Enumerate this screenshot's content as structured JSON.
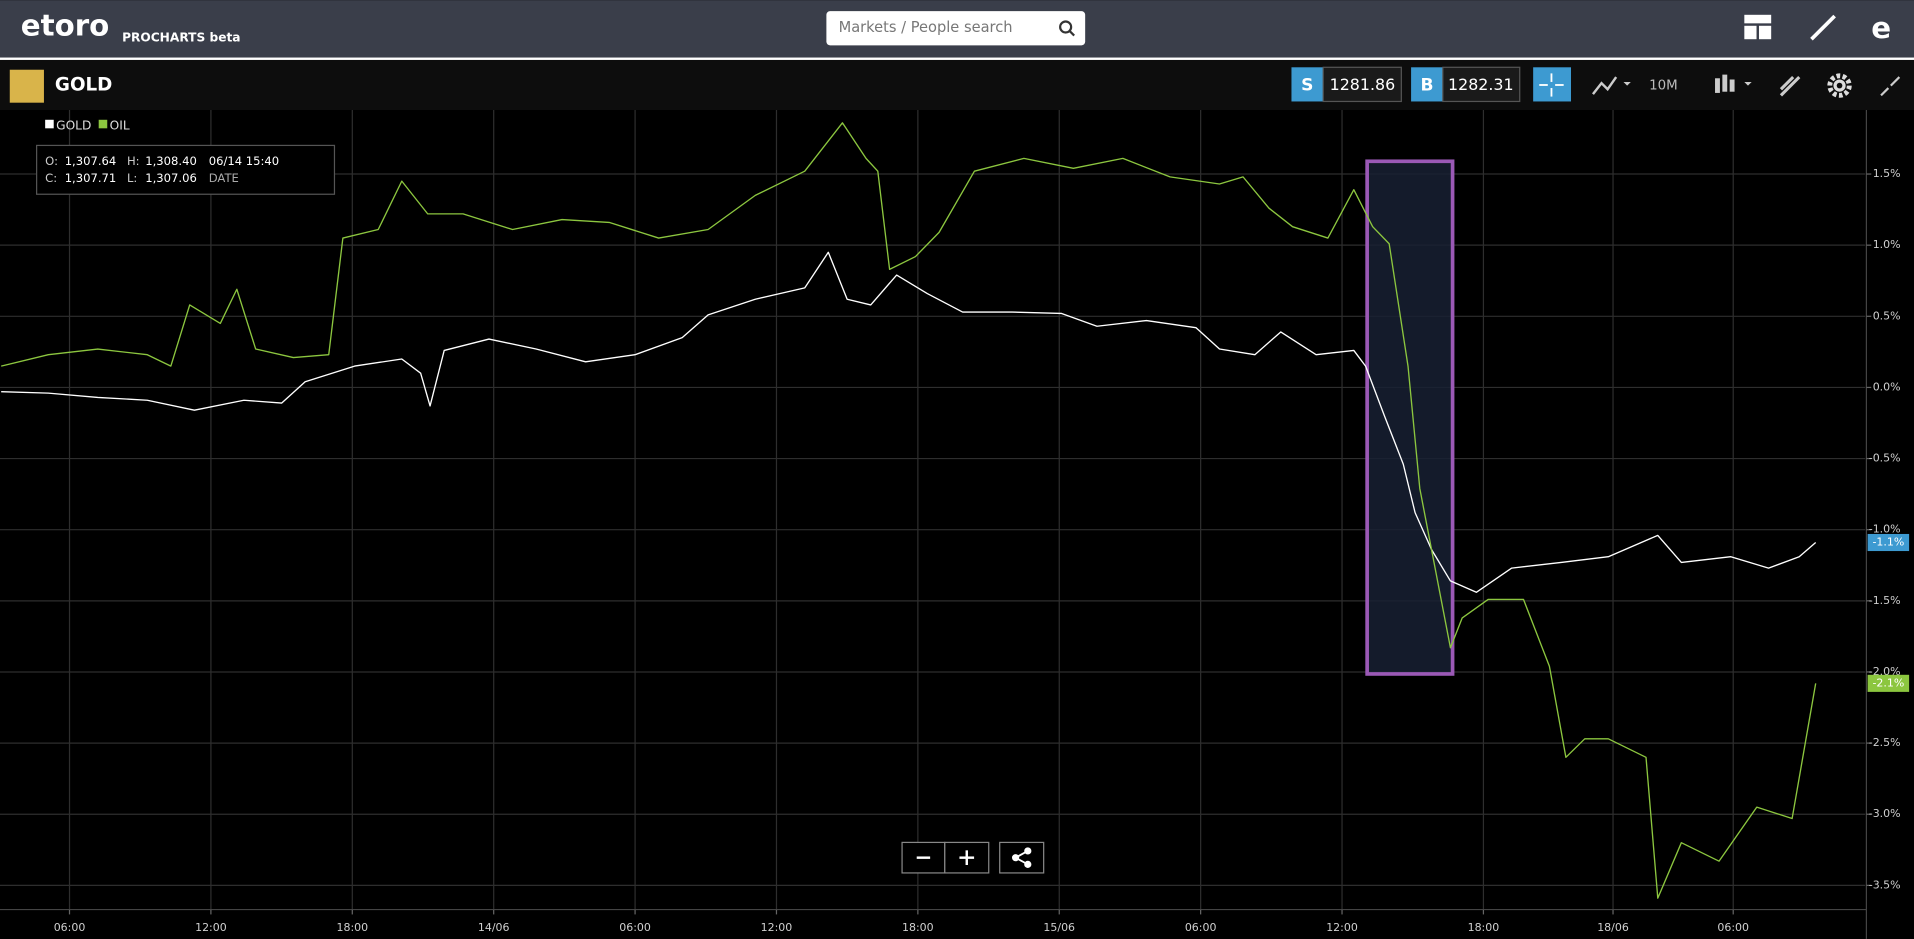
{
  "header": {
    "logo": "etoro",
    "product": "PROCHARTS beta",
    "search_placeholder": "Markets / People search"
  },
  "instrument": {
    "name": "GOLD",
    "sell_label": "S",
    "sell_price": 1281.86,
    "buy_label": "B",
    "buy_price": 1282.31,
    "timeframe": "10M"
  },
  "ohlc": {
    "o_label": "O:",
    "o": "1,307.64",
    "h_label": "H:",
    "h": "1,308.40",
    "date": "06/14 15:40",
    "c_label": "C:",
    "c": "1,307.71",
    "l_label": "L:",
    "l": "1,307.06",
    "date_label": "DATE"
  },
  "chart_data": {
    "type": "line",
    "xlim": [
      3.05,
      82.2
    ],
    "xticks": [
      {
        "value": 6,
        "label": "06:00"
      },
      {
        "value": 12,
        "label": "12:00"
      },
      {
        "value": 18,
        "label": "18:00"
      },
      {
        "value": 24,
        "label": "14/06"
      },
      {
        "value": 30,
        "label": "06:00"
      },
      {
        "value": 36,
        "label": "12:00"
      },
      {
        "value": 42,
        "label": "18:00"
      },
      {
        "value": 48,
        "label": "15/06"
      },
      {
        "value": 54,
        "label": "06:00"
      },
      {
        "value": 60,
        "label": "12:00"
      },
      {
        "value": 66,
        "label": "18:00"
      },
      {
        "value": 71.5,
        "label": "18/06"
      },
      {
        "value": 76.6,
        "label": "06:00"
      }
    ],
    "ylim": [
      -3.67,
      1.95
    ],
    "yticks": [
      {
        "value": 1.5,
        "label": "1.5%"
      },
      {
        "value": 1.0,
        "label": "1.0%"
      },
      {
        "value": 0.5,
        "label": "0.5%"
      },
      {
        "value": 0.0,
        "label": "0.0%"
      },
      {
        "value": -0.5,
        "label": "-0.5%"
      },
      {
        "value": -1.0,
        "label": "-1.0%"
      },
      {
        "value": -1.5,
        "label": "-1.5%"
      },
      {
        "value": -2.0,
        "label": "-2.0%"
      },
      {
        "value": -2.5,
        "label": "-2.5%"
      },
      {
        "value": -3.0,
        "label": "-3.0%"
      },
      {
        "value": -3.5,
        "label": "-3.5%"
      }
    ],
    "grid": true,
    "legend": "top-left",
    "series": [
      {
        "name": "GOLD",
        "color": "#ffffff",
        "label_color": "#3d9ad1",
        "last_label": "-1.1%",
        "x": [
          3.1,
          5.1,
          7.2,
          9.3,
          11.3,
          13.4,
          15.0,
          16.0,
          18.1,
          20.1,
          20.9,
          21.3,
          21.9,
          23.8,
          25.8,
          27.9,
          30.0,
          32.0,
          33.1,
          35.1,
          37.2,
          38.2,
          39.0,
          40.0,
          41.1,
          42.4,
          43.9,
          46.0,
          48.1,
          49.6,
          51.7,
          53.8,
          54.8,
          56.3,
          57.4,
          58.9,
          60.5,
          61.0,
          61.8,
          62.6,
          63.1,
          63.8,
          64.6,
          65.7,
          67.2,
          69.3,
          71.3,
          73.4,
          74.4,
          76.5,
          78.1,
          79.4,
          80.1
        ],
        "values": [
          -0.03,
          -0.04,
          -0.07,
          -0.09,
          -0.16,
          -0.09,
          -0.11,
          0.04,
          0.15,
          0.2,
          0.1,
          -0.13,
          0.26,
          0.34,
          0.27,
          0.18,
          0.23,
          0.35,
          0.51,
          0.62,
          0.7,
          0.95,
          0.62,
          0.58,
          0.79,
          0.66,
          0.53,
          0.53,
          0.52,
          0.43,
          0.47,
          0.42,
          0.27,
          0.23,
          0.39,
          0.23,
          0.26,
          0.15,
          -0.2,
          -0.54,
          -0.88,
          -1.14,
          -1.36,
          -1.44,
          -1.27,
          -1.23,
          -1.19,
          -1.04,
          -1.23,
          -1.19,
          -1.27,
          -1.19,
          -1.09
        ]
      },
      {
        "name": "OIL",
        "color": "#8cc63f",
        "label_color": "#8cc63f",
        "last_label": "-2.1%",
        "x": [
          3.1,
          5.1,
          7.2,
          9.3,
          10.3,
          11.1,
          12.4,
          13.1,
          13.9,
          15.5,
          17.0,
          17.6,
          19.1,
          20.1,
          21.2,
          22.7,
          24.8,
          26.9,
          28.9,
          31.0,
          33.1,
          35.1,
          37.2,
          38.8,
          39.8,
          40.3,
          40.8,
          41.9,
          42.9,
          44.4,
          46.5,
          48.6,
          50.7,
          52.7,
          54.8,
          55.8,
          56.9,
          57.9,
          59.4,
          60.5,
          61.3,
          62.0,
          62.8,
          63.3,
          64.1,
          64.6,
          65.1,
          66.2,
          67.7,
          68.8,
          69.5,
          70.3,
          71.3,
          72.9,
          73.4,
          74.4,
          76.0,
          77.6,
          79.1,
          80.1
        ],
        "values": [
          0.15,
          0.23,
          0.27,
          0.23,
          0.15,
          0.58,
          0.45,
          0.69,
          0.27,
          0.21,
          0.23,
          1.05,
          1.11,
          1.45,
          1.22,
          1.22,
          1.11,
          1.18,
          1.16,
          1.05,
          1.11,
          1.35,
          1.52,
          1.86,
          1.61,
          1.52,
          0.83,
          0.92,
          1.09,
          1.52,
          1.61,
          1.54,
          1.61,
          1.48,
          1.43,
          1.48,
          1.26,
          1.13,
          1.05,
          1.39,
          1.13,
          1.01,
          0.15,
          -0.71,
          -1.4,
          -1.83,
          -1.62,
          -1.49,
          -1.49,
          -1.96,
          -2.6,
          -2.47,
          -2.47,
          -2.6,
          -3.59,
          -3.2,
          -3.33,
          -2.95,
          -3.03,
          -2.08
        ]
      }
    ]
  }
}
